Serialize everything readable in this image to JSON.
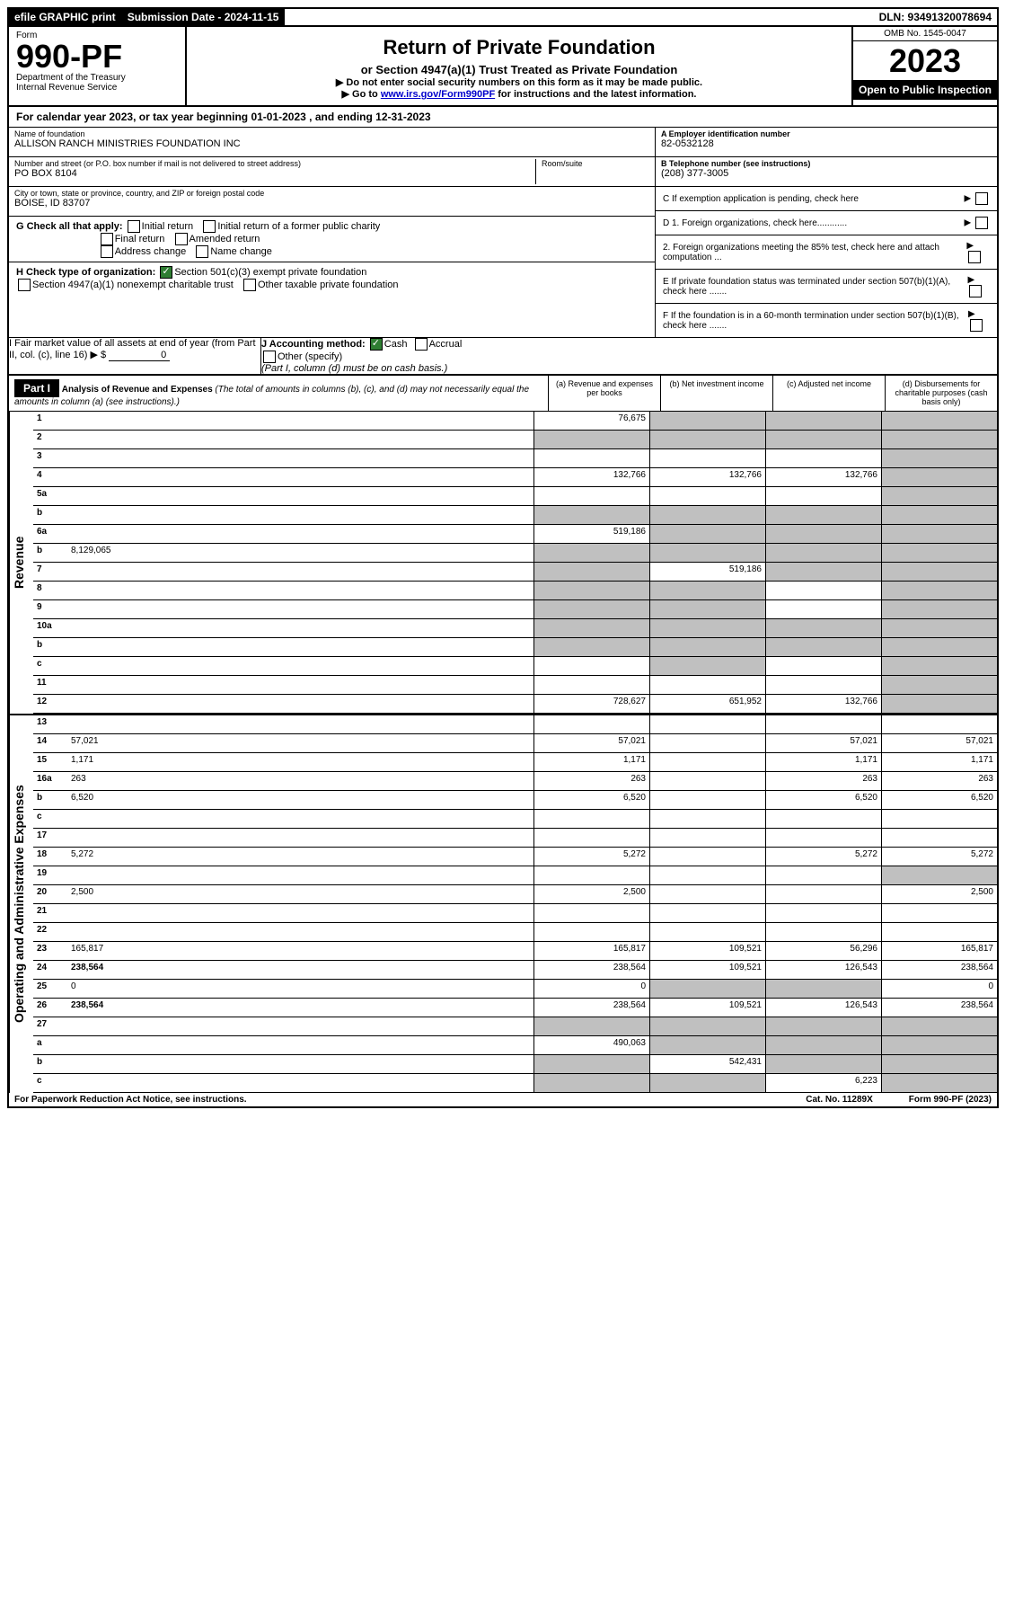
{
  "topbar": {
    "efile": "efile GRAPHIC print",
    "submission_label": "Submission Date - 2024-11-15",
    "dln": "DLN: 93491320078694"
  },
  "header": {
    "form_word": "Form",
    "form_no": "990-PF",
    "dept": "Department of the Treasury",
    "irs": "Internal Revenue Service",
    "title": "Return of Private Foundation",
    "subtitle": "or Section 4947(a)(1) Trust Treated as Private Foundation",
    "note1": "▶ Do not enter social security numbers on this form as it may be made public.",
    "note2_pre": "▶ Go to ",
    "note2_link": "www.irs.gov/Form990PF",
    "note2_post": " for instructions and the latest information.",
    "omb": "OMB No. 1545-0047",
    "year": "2023",
    "inspection": "Open to Public Inspection"
  },
  "calyear": "For calendar year 2023, or tax year beginning 01-01-2023                         , and ending 12-31-2023",
  "foundation": {
    "name_label": "Name of foundation",
    "name": "ALLISON RANCH MINISTRIES FOUNDATION INC",
    "street_label": "Number and street (or P.O. box number if mail is not delivered to street address)",
    "street": "PO BOX 8104",
    "room_label": "Room/suite",
    "city_label": "City or town, state or province, country, and ZIP or foreign postal code",
    "city": "BOISE, ID  83707",
    "ein_label": "A Employer identification number",
    "ein": "82-0532128",
    "phone_label": "B Telephone number (see instructions)",
    "phone": "(208) 377-3005",
    "c_label": "C If exemption application is pending, check here"
  },
  "checkG": {
    "label": "G Check all that apply:",
    "o1": "Initial return",
    "o2": "Initial return of a former public charity",
    "o3": "Final return",
    "o4": "Amended return",
    "o5": "Address change",
    "o6": "Name change"
  },
  "checkH": {
    "label": "H Check type of organization:",
    "o1": "Section 501(c)(3) exempt private foundation",
    "o2": "Section 4947(a)(1) nonexempt charitable trust",
    "o3": "Other taxable private foundation"
  },
  "boxD": {
    "d1": "D 1. Foreign organizations, check here............",
    "d2": "2. Foreign organizations meeting the 85% test, check here and attach computation ...",
    "e": "E  If private foundation status was terminated under section 507(b)(1)(A), check here .......",
    "f": "F  If the foundation is in a 60-month termination under section 507(b)(1)(B), check here ......."
  },
  "boxI": {
    "label": "I Fair market value of all assets at end of year (from Part II, col. (c), line 16)",
    "arrow": "▶ $",
    "value": "0"
  },
  "boxJ": {
    "label": "J Accounting method:",
    "cash": "Cash",
    "accrual": "Accrual",
    "other": "Other (specify)",
    "note": "(Part I, column (d) must be on cash basis.)"
  },
  "part1": {
    "label": "Part I",
    "title": "Analysis of Revenue and Expenses",
    "title_note": "(The total of amounts in columns (b), (c), and (d) may not necessarily equal the amounts in column (a) (see instructions).)",
    "col_a": "(a)   Revenue and expenses per books",
    "col_b": "(b)   Net investment income",
    "col_c": "(c)   Adjusted net income",
    "col_d": "(d)   Disbursements for charitable purposes (cash basis only)"
  },
  "vlabels": {
    "revenue": "Revenue",
    "expenses": "Operating and Administrative Expenses"
  },
  "rows": {
    "r1": {
      "n": "1",
      "d": "",
      "a": "76,675",
      "b": "",
      "c": "",
      "grey": [
        "b",
        "c",
        "d"
      ]
    },
    "r2": {
      "n": "2",
      "d": "",
      "a": "",
      "b": "",
      "c": "",
      "grey": [
        "a",
        "b",
        "c",
        "d"
      ]
    },
    "r3": {
      "n": "3",
      "d": "",
      "a": "",
      "b": "",
      "c": "",
      "grey": [
        "d"
      ]
    },
    "r4": {
      "n": "4",
      "d": "",
      "a": "132,766",
      "b": "132,766",
      "c": "132,766",
      "grey": [
        "d"
      ]
    },
    "r5a": {
      "n": "5a",
      "d": "",
      "a": "",
      "b": "",
      "c": "",
      "grey": [
        "d"
      ]
    },
    "r5b": {
      "n": "b",
      "d": "",
      "a": "",
      "b": "",
      "c": "",
      "grey": [
        "a",
        "b",
        "c",
        "d"
      ]
    },
    "r6a": {
      "n": "6a",
      "d": "",
      "a": "519,186",
      "b": "",
      "c": "",
      "grey": [
        "b",
        "c",
        "d"
      ]
    },
    "r6b": {
      "n": "b",
      "d": "",
      "inline": "8,129,065",
      "a": "",
      "b": "",
      "c": "",
      "grey": [
        "a",
        "b",
        "c",
        "d"
      ]
    },
    "r7": {
      "n": "7",
      "d": "",
      "a": "",
      "b": "519,186",
      "c": "",
      "grey": [
        "a",
        "c",
        "d"
      ]
    },
    "r8": {
      "n": "8",
      "d": "",
      "a": "",
      "b": "",
      "c": "",
      "grey": [
        "a",
        "b",
        "d"
      ]
    },
    "r9": {
      "n": "9",
      "d": "",
      "a": "",
      "b": "",
      "c": "",
      "grey": [
        "a",
        "b",
        "d"
      ]
    },
    "r10a": {
      "n": "10a",
      "d": "",
      "a": "",
      "b": "",
      "c": "",
      "grey": [
        "a",
        "b",
        "c",
        "d"
      ]
    },
    "r10b": {
      "n": "b",
      "d": "",
      "a": "",
      "b": "",
      "c": "",
      "grey": [
        "a",
        "b",
        "c",
        "d"
      ]
    },
    "r10c": {
      "n": "c",
      "d": "",
      "a": "",
      "b": "",
      "c": "",
      "grey": [
        "b",
        "d"
      ]
    },
    "r11": {
      "n": "11",
      "d": "",
      "a": "",
      "b": "",
      "c": "",
      "grey": [
        "d"
      ]
    },
    "r12": {
      "n": "12",
      "d": "",
      "bold": true,
      "a": "728,627",
      "b": "651,952",
      "c": "132,766",
      "grey": [
        "d"
      ]
    },
    "r13": {
      "n": "13",
      "d": "",
      "a": "",
      "b": "",
      "c": ""
    },
    "r14": {
      "n": "14",
      "d": "57,021",
      "a": "57,021",
      "b": "",
      "c": "57,021"
    },
    "r15": {
      "n": "15",
      "d": "1,171",
      "a": "1,171",
      "b": "",
      "c": "1,171"
    },
    "r16a": {
      "n": "16a",
      "d": "263",
      "a": "263",
      "b": "",
      "c": "263"
    },
    "r16b": {
      "n": "b",
      "d": "6,520",
      "a": "6,520",
      "b": "",
      "c": "6,520"
    },
    "r16c": {
      "n": "c",
      "d": "",
      "a": "",
      "b": "",
      "c": ""
    },
    "r17": {
      "n": "17",
      "d": "",
      "a": "",
      "b": "",
      "c": ""
    },
    "r18": {
      "n": "18",
      "d": "5,272",
      "a": "5,272",
      "b": "",
      "c": "5,272"
    },
    "r19": {
      "n": "19",
      "d": "",
      "a": "",
      "b": "",
      "c": "",
      "grey": [
        "d"
      ]
    },
    "r20": {
      "n": "20",
      "d": "2,500",
      "a": "2,500",
      "b": "",
      "c": ""
    },
    "r21": {
      "n": "21",
      "d": "",
      "a": "",
      "b": "",
      "c": ""
    },
    "r22": {
      "n": "22",
      "d": "",
      "a": "",
      "b": "",
      "c": ""
    },
    "r23": {
      "n": "23",
      "d": "165,817",
      "icon": true,
      "a": "165,817",
      "b": "109,521",
      "c": "56,296"
    },
    "r24": {
      "n": "24",
      "d": "238,564",
      "bold": true,
      "a": "238,564",
      "b": "109,521",
      "c": "126,543"
    },
    "r25": {
      "n": "25",
      "d": "0",
      "a": "0",
      "b": "",
      "c": "",
      "grey": [
        "b",
        "c"
      ]
    },
    "r26": {
      "n": "26",
      "d": "238,564",
      "bold": true,
      "a": "238,564",
      "b": "109,521",
      "c": "126,543"
    },
    "r27": {
      "n": "27",
      "d": "",
      "a": "",
      "b": "",
      "c": "",
      "grey": [
        "a",
        "b",
        "c",
        "d"
      ]
    },
    "r27a": {
      "n": "a",
      "d": "",
      "bold": true,
      "a": "490,063",
      "b": "",
      "c": "",
      "grey": [
        "b",
        "c",
        "d"
      ]
    },
    "r27b": {
      "n": "b",
      "d": "",
      "bold": true,
      "a": "",
      "b": "542,431",
      "c": "",
      "grey": [
        "a",
        "c",
        "d"
      ]
    },
    "r27c": {
      "n": "c",
      "d": "",
      "bold": true,
      "a": "",
      "b": "",
      "c": "6,223",
      "grey": [
        "a",
        "b",
        "d"
      ]
    }
  },
  "footer": {
    "pra": "For Paperwork Reduction Act Notice, see instructions.",
    "cat": "Cat. No. 11289X",
    "form": "Form 990-PF (2023)"
  },
  "revenue_rows": [
    "r1",
    "r2",
    "r3",
    "r4",
    "r5a",
    "r5b",
    "r6a",
    "r6b",
    "r7",
    "r8",
    "r9",
    "r10a",
    "r10b",
    "r10c",
    "r11",
    "r12"
  ],
  "expense_rows": [
    "r13",
    "r14",
    "r15",
    "r16a",
    "r16b",
    "r16c",
    "r17",
    "r18",
    "r19",
    "r20",
    "r21",
    "r22",
    "r23",
    "r24",
    "r25",
    "r26",
    "r27",
    "r27a",
    "r27b",
    "r27c"
  ]
}
